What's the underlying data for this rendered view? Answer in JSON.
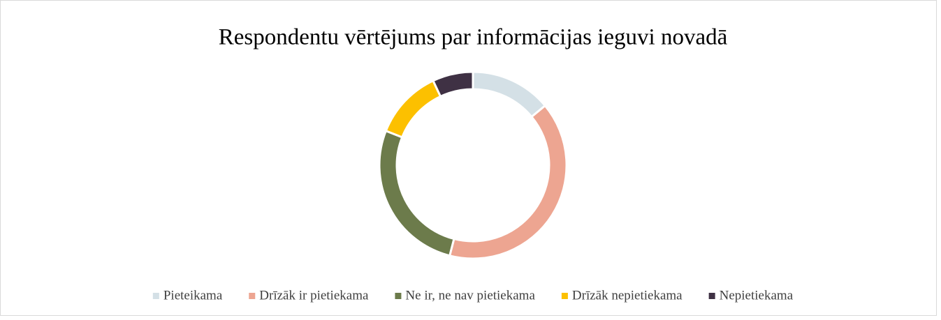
{
  "chart_data": {
    "type": "donut",
    "title": "Respondentu vērtējums par informācijas ieguvi novadā",
    "categories": [
      "Pieteikama",
      "Drīzāk ir pietiekama",
      "Ne ir, ne nav pietiekama",
      "Drīzāk nepietiekama",
      "Nepietiekama"
    ],
    "values": [
      14,
      40,
      27,
      12,
      7
    ],
    "colors": [
      "#d4e0e6",
      "#eda591",
      "#6c7b4b",
      "#fcc000",
      "#3f3144"
    ],
    "legend": "bottom"
  }
}
